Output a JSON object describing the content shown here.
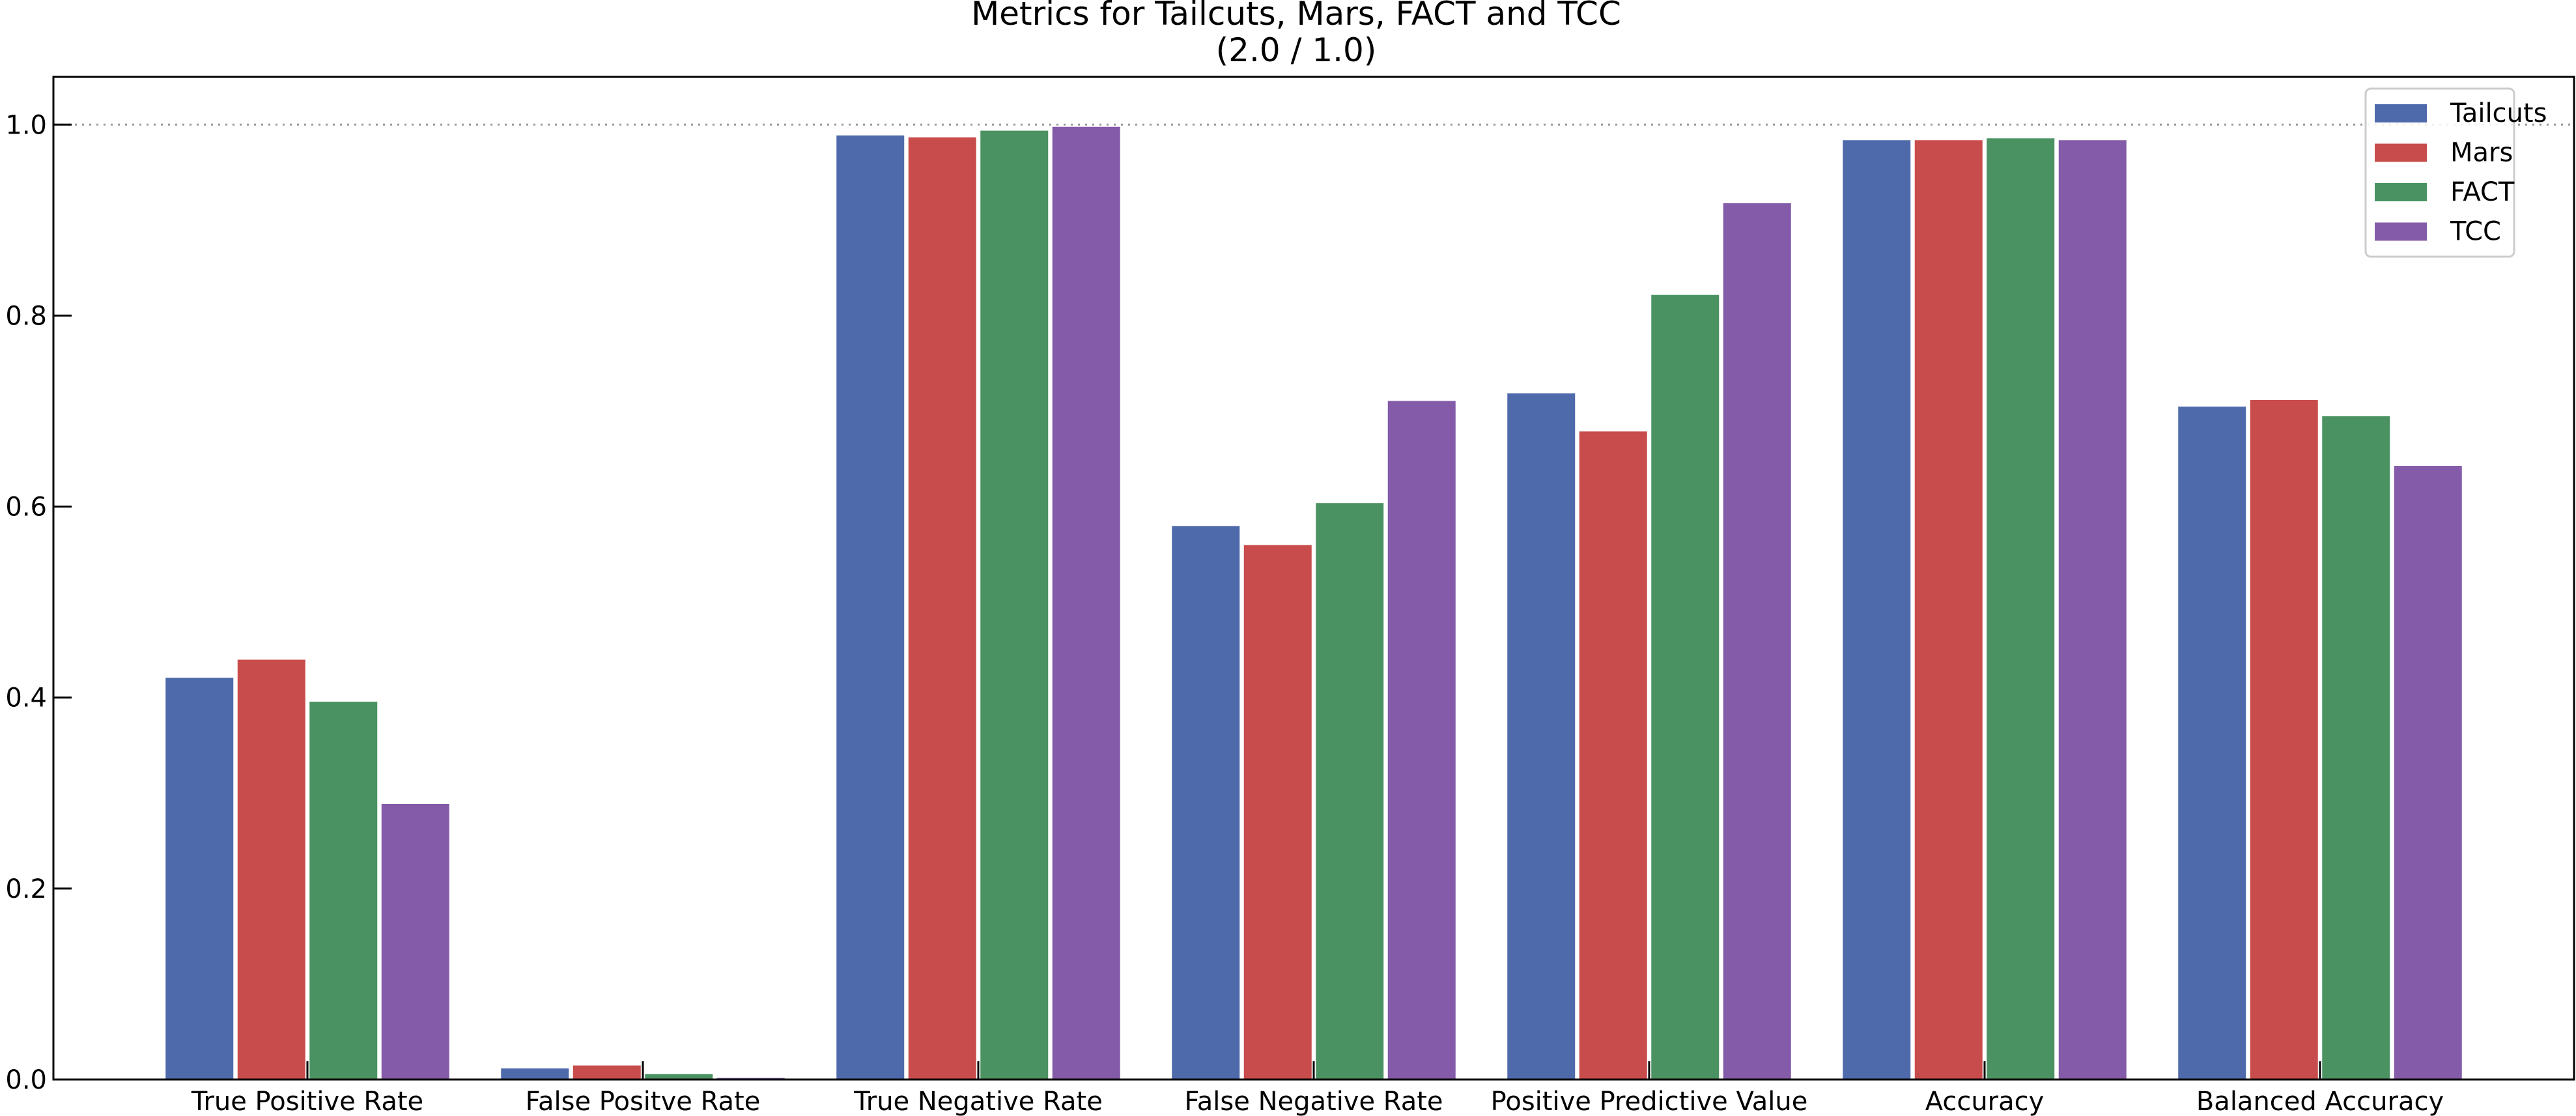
{
  "chart_data": {
    "type": "bar",
    "title": "Metrics for Tailcuts, Mars, FACT and TCC",
    "subtitle": "(2.0 / 1.0)",
    "xlabel": "",
    "ylabel": "",
    "categories": [
      "True Positive Rate",
      "False Positve Rate",
      "True Negative Rate",
      "False Negative Rate",
      "Positive Predictive Value",
      "Accuracy",
      "Balanced Accuracy"
    ],
    "series": [
      {
        "name": "Tailcuts",
        "color": "#4f6aab",
        "values": [
          0.421,
          0.012,
          0.989,
          0.58,
          0.719,
          0.984,
          0.705
        ]
      },
      {
        "name": "Mars",
        "color": "#c94c4c",
        "values": [
          0.44,
          0.015,
          0.987,
          0.56,
          0.679,
          0.984,
          0.712
        ]
      },
      {
        "name": "FACT",
        "color": "#4b9262",
        "values": [
          0.396,
          0.006,
          0.994,
          0.604,
          0.822,
          0.986,
          0.695
        ]
      },
      {
        "name": "TCC",
        "color": "#845ba8",
        "values": [
          0.289,
          0.002,
          0.998,
          0.711,
          0.918,
          0.984,
          0.643
        ]
      }
    ],
    "ylim": [
      0,
      1.05
    ],
    "yticks": [
      0.0,
      0.2,
      0.4,
      0.6,
      0.8,
      1.0
    ],
    "ytick_labels": [
      "0.0",
      "0.2",
      "0.4",
      "0.6",
      "0.8",
      "1.0"
    ],
    "reference_line": 1.0,
    "grid": false,
    "legend_position": "top-right"
  }
}
